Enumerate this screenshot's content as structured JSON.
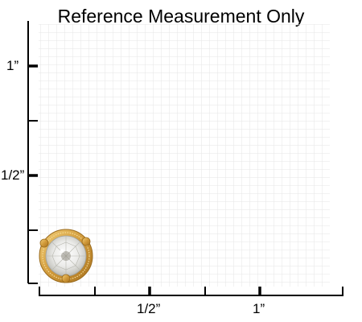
{
  "title": "Reference Measurement Only",
  "y_axis": {
    "labels": [
      "1”",
      "1/2”"
    ]
  },
  "x_axis": {
    "labels": [
      "1/2”",
      "1”"
    ]
  },
  "colors": {
    "grid": "#e6e6e6",
    "axis": "#000000",
    "gold": "#d4a042",
    "stone": "#f4f4f2"
  },
  "product_image": "diamond-stud-earring-gold-setting"
}
